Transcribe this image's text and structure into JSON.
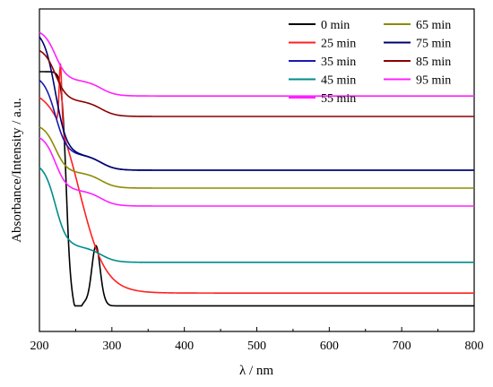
{
  "chart_data": {
    "type": "line",
    "xlabel": "λ / nm",
    "ylabel": "Absorbance/Intensity / a.u.",
    "xlim": [
      200,
      800
    ],
    "x_ticks": [
      200,
      300,
      400,
      500,
      600,
      700,
      800
    ],
    "y_ticks_shown": false,
    "grid": false,
    "legend_position": "top-right",
    "series": [
      {
        "name": "0 min",
        "color": "#000000",
        "baseline": 0.1,
        "profile": "peak",
        "top": 1.0
      },
      {
        "name": "25 min",
        "color": "#ff2020",
        "baseline": 0.15,
        "profile": "spike",
        "top": 0.95
      },
      {
        "name": "35 min",
        "color": "#1a1ab0",
        "baseline": 0.63,
        "profile": "decay",
        "top": 0.94
      },
      {
        "name": "45 min",
        "color": "#008b8b",
        "baseline": 0.27,
        "profile": "decay",
        "top": 0.6
      },
      {
        "name": "55 min",
        "color": "#ff20ff",
        "baseline": 0.92,
        "profile": "decay",
        "top": 1.12
      },
      {
        "name": "65 min",
        "color": "#8b8b00",
        "baseline": 0.56,
        "profile": "decay",
        "top": 0.75
      },
      {
        "name": "75 min",
        "color": "#00006e",
        "baseline": 0.63,
        "profile": "decay",
        "top": 1.12
      },
      {
        "name": "85 min",
        "color": "#8b0000",
        "baseline": 0.84,
        "profile": "decay",
        "top": 1.05
      },
      {
        "name": "95 min",
        "color": "#ff20ff",
        "baseline": 0.49,
        "profile": "decay",
        "top": 0.71
      }
    ]
  }
}
